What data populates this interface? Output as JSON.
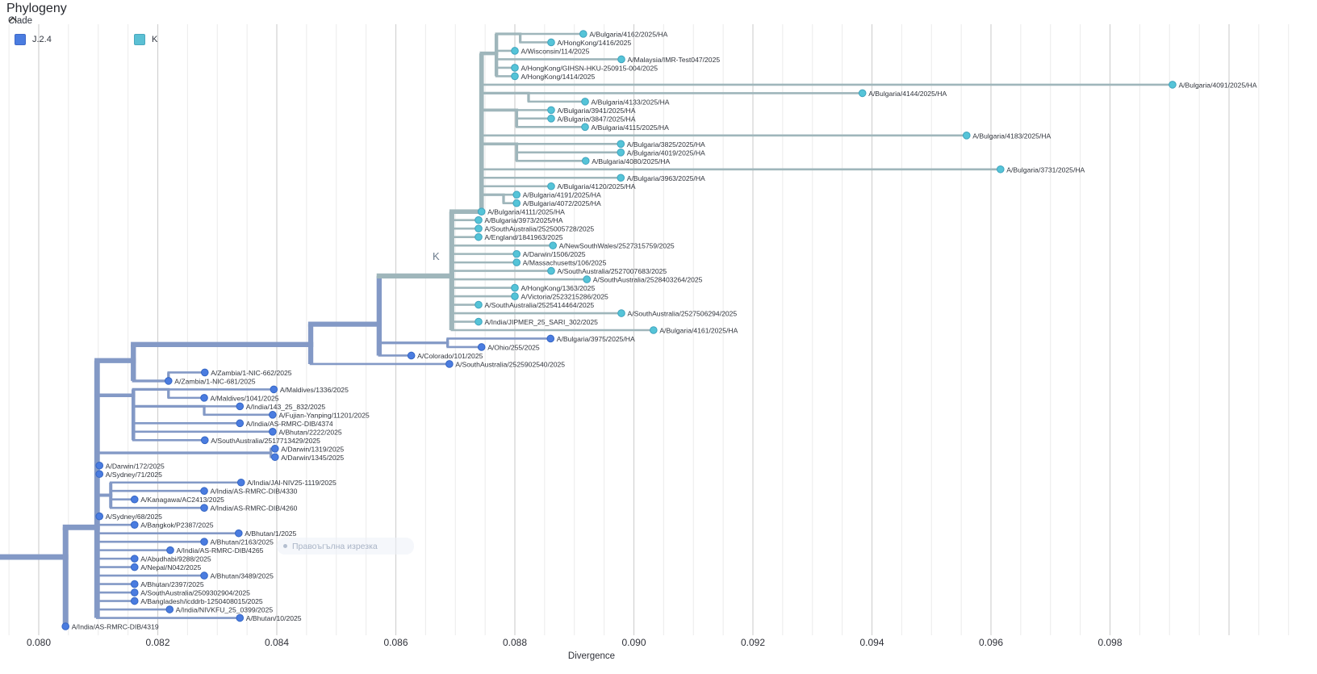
{
  "header": {
    "title": "Phylogeny",
    "filter_label": "Clade"
  },
  "legend": {
    "items": [
      {
        "label": "J.2.4",
        "color": "#4A7CE0",
        "border": "#3E68C8"
      },
      {
        "label": "K",
        "color": "#5BC0D4",
        "border": "#49A8BE"
      }
    ]
  },
  "clade_annotation": {
    "text": "K"
  },
  "watermark": {
    "text": "Правоъгълна изрезка"
  },
  "axis": {
    "label": "Divergence",
    "ticks": [
      {
        "label": "0.080",
        "value": 0.08
      },
      {
        "label": "0.082",
        "value": 0.082
      },
      {
        "label": "0.084",
        "value": 0.084
      },
      {
        "label": "0.086",
        "value": 0.086
      },
      {
        "label": "0.088",
        "value": 0.088
      },
      {
        "label": "0.090",
        "value": 0.09
      },
      {
        "label": "0.092",
        "value": 0.092
      },
      {
        "label": "0.094",
        "value": 0.094
      },
      {
        "label": "0.096",
        "value": 0.096
      },
      {
        "label": "0.098",
        "value": 0.098
      }
    ],
    "grid": {
      "start": 0.0795,
      "end": 0.1015,
      "minor_step": 0.0005,
      "major_multiple": 0.002
    }
  },
  "chart_data": {
    "type": "tree",
    "title": "Phylogeny",
    "xlabel": "Divergence",
    "xlim": [
      0.0795,
      0.1015
    ],
    "legend_position": "top-left",
    "grid": true,
    "clade_colors": {
      "J24": {
        "branch": "#8399C6",
        "fill": "#4A7CE0",
        "stroke": "#3566C4"
      },
      "K": {
        "branch": "#9FB6BB",
        "fill": "#55C4D8",
        "stroke": "#3FA3BD"
      }
    },
    "tree": {
      "x": 0.08045,
      "r": 62.8,
      "c": "J24",
      "ch": [
        {
          "x": 0.08098,
          "r": 59.3,
          "ch": [
            {
              "x": 0.08159,
              "r": 39.6,
              "ch": [
                {
                  "x": 0.08457,
                  "r": 37.7,
                  "ch": [
                    {
                      "x": 0.08572,
                      "r": 35.3,
                      "ch": [
                        {
                          "x": 0.08694,
                          "r": 29.6,
                          "c": "K",
                          "ch": [
                            {
                              "x": 0.08744,
                              "r": 22,
                              "ch": [
                                {
                                  "x": 0.08769,
                                  "r": 3.3,
                                  "ch": [
                                    {
                                      "x": 0.08809,
                                      "r": 1,
                                      "ch": [
                                        {
                                          "l": "A/Bulgaria/4162/2025/HA",
                                          "x": 0.08915,
                                          "r": 1
                                        },
                                        {
                                          "l": "A/HongKong/1416/2025",
                                          "x": 0.08861,
                                          "r": 2
                                        }
                                      ]
                                    },
                                    {
                                      "l": "A/Wisconsin/114/2025",
                                      "x": 0.088,
                                      "r": 3
                                    },
                                    {
                                      "l": "A/Malaysia/IMR-Test047/2025",
                                      "x": 0.08979,
                                      "r": 4
                                    },
                                    {
                                      "l": "A/HongKong/GIHSN-HKU-250915-004/2025",
                                      "x": 0.088,
                                      "r": 5
                                    },
                                    {
                                      "l": "A/HongKong/1414/2025",
                                      "x": 0.088,
                                      "r": 6
                                    }
                                  ]
                                },
                                {
                                  "l": "A/Bulgaria/4091/2025/HA",
                                  "x": 0.09905,
                                  "r": 7
                                },
                                {
                                  "x": 0.08823,
                                  "r": 8,
                                  "ch": [
                                    {
                                      "l": "A/Bulgaria/4144/2025/HA",
                                      "x": 0.09384,
                                      "r": 8
                                    },
                                    {
                                      "l": "A/Bulgaria/4133/2025/HA",
                                      "x": 0.08918,
                                      "r": 9
                                    }
                                  ]
                                },
                                {
                                  "x": 0.08803,
                                  "r": 10,
                                  "ch": [
                                    {
                                      "l": "A/Bulgaria/3941/2025/HA",
                                      "x": 0.08861,
                                      "r": 10
                                    },
                                    {
                                      "l": "A/Bulgaria/3847/2025/HA",
                                      "x": 0.08861,
                                      "r": 11
                                    },
                                    {
                                      "l": "A/Bulgaria/4115/2025/HA",
                                      "x": 0.08918,
                                      "r": 12
                                    }
                                  ]
                                },
                                {
                                  "l": "A/Bulgaria/4183/2025/HA",
                                  "x": 0.09559,
                                  "r": 13
                                },
                                {
                                  "x": 0.08803,
                                  "r": 14,
                                  "ch": [
                                    {
                                      "l": "A/Bulgaria/3825/2025/HA",
                                      "x": 0.08978,
                                      "r": 14
                                    },
                                    {
                                      "l": "A/Bulgaria/4019/2025/HA",
                                      "x": 0.08978,
                                      "r": 15
                                    },
                                    {
                                      "l": "A/Bulgaria/4080/2025/HA",
                                      "x": 0.08919,
                                      "r": 16
                                    }
                                  ]
                                },
                                {
                                  "l": "A/Bulgaria/3731/2025/HA",
                                  "x": 0.09616,
                                  "r": 17
                                },
                                {
                                  "l": "A/Bulgaria/3963/2025/HA",
                                  "x": 0.08978,
                                  "r": 18
                                },
                                {
                                  "l": "A/Bulgaria/4120/2025/HA",
                                  "x": 0.08861,
                                  "r": 19
                                },
                                {
                                  "x": 0.08781,
                                  "r": 20,
                                  "ch": [
                                    {
                                      "l": "A/Bulgaria/4191/2025/HA",
                                      "x": 0.08803,
                                      "r": 20
                                    },
                                    {
                                      "l": "A/Bulgaria/4072/2025/HA",
                                      "x": 0.08803,
                                      "r": 21
                                    }
                                  ]
                                },
                                {
                                  "l": "A/Bulgaria/4111/2025/HA",
                                  "x": 0.08744,
                                  "r": 22
                                }
                              ]
                            },
                            {
                              "l": "A/Bulgaria/3973/2025/HA",
                              "x": 0.08739,
                              "r": 23
                            },
                            {
                              "l": "A/SouthAustralia/2525005728/2025",
                              "x": 0.08739,
                              "r": 24
                            },
                            {
                              "l": "A/England/1841963/2025",
                              "x": 0.08739,
                              "r": 25
                            },
                            {
                              "l": "A/NewSouthWales/2527315759/2025",
                              "x": 0.08864,
                              "r": 26
                            },
                            {
                              "l": "A/Darwin/1506/2025",
                              "x": 0.08803,
                              "r": 27
                            },
                            {
                              "l": "A/Massachusetts/106/2025",
                              "x": 0.08803,
                              "r": 28
                            },
                            {
                              "l": "A/SouthAustralia/2527007683/2025",
                              "x": 0.08861,
                              "r": 29
                            },
                            {
                              "l": "A/SouthAustralia/2528403264/2025",
                              "x": 0.08921,
                              "r": 30
                            },
                            {
                              "l": "A/HongKong/1363/2025",
                              "x": 0.088,
                              "r": 31
                            },
                            {
                              "l": "A/Victoria/2523215286/2025",
                              "x": 0.088,
                              "r": 32
                            },
                            {
                              "l": "A/SouthAustralia/2525414464/2025",
                              "x": 0.08739,
                              "r": 33
                            },
                            {
                              "l": "A/SouthAustralia/2527506294/2025",
                              "x": 0.08979,
                              "r": 34
                            },
                            {
                              "l": "A/India/JIPMER_25_SARI_302/2025",
                              "x": 0.08739,
                              "r": 35
                            },
                            {
                              "l": "A/Bulgaria/4161/2025/HA",
                              "x": 0.09033,
                              "r": 36
                            }
                          ]
                        },
                        {
                          "x": 0.08687,
                          "r": 37.5,
                          "ch": [
                            {
                              "l": "A/Bulgaria/3975/2025/HA",
                              "x": 0.0886,
                              "r": 37
                            },
                            {
                              "l": "A/Ohio/255/2025",
                              "x": 0.08744,
                              "r": 38
                            }
                          ]
                        },
                        {
                          "l": "A/Colorado/101/2025",
                          "x": 0.08626,
                          "r": 39
                        }
                      ]
                    },
                    {
                      "l": "A/SouthAustralia/2525902540/2025",
                      "x": 0.0869,
                      "r": 40
                    }
                  ]
                },
                {
                  "x": 0.08218,
                  "r": 42,
                  "ch": [
                    {
                      "l": "A/Zambia/1-NIC-662/2025",
                      "x": 0.08279,
                      "r": 41
                    },
                    {
                      "l": "A/Zambia/1-NIC-681/2025",
                      "x": 0.08218,
                      "r": 42
                    }
                  ]
                }
              ]
            },
            {
              "x": 0.08159,
              "r": 43.7,
              "ch": [
                {
                  "x": 0.08218,
                  "r": 43,
                  "ch": [
                    {
                      "l": "A/Maldives/1336/2025",
                      "x": 0.08395,
                      "r": 43
                    },
                    {
                      "l": "A/Maldives/1041/2025",
                      "x": 0.08278,
                      "r": 44
                    }
                  ]
                },
                {
                  "x": 0.08278,
                  "r": 45,
                  "ch": [
                    {
                      "l": "A/India/143_25_832/2025",
                      "x": 0.08338,
                      "r": 45
                    },
                    {
                      "l": "A/Fujian-Yanping/11201/2025",
                      "x": 0.08393,
                      "r": 46
                    }
                  ]
                },
                {
                  "l": "A/India/AS-RMRC-DIB/4374",
                  "x": 0.08338,
                  "r": 47
                },
                {
                  "l": "A/Bhutan/2222/2025",
                  "x": 0.08393,
                  "r": 48
                },
                {
                  "l": "A/SouthAustralia/2517713429/2025",
                  "x": 0.08279,
                  "r": 49
                }
              ]
            },
            {
              "x": 0.0839,
              "r": 50.5,
              "ch": [
                {
                  "l": "A/Darwin/1319/2025",
                  "x": 0.08397,
                  "r": 50
                },
                {
                  "l": "A/Darwin/1345/2025",
                  "x": 0.08397,
                  "r": 51
                }
              ]
            },
            {
              "l": "A/Darwin/172/2025",
              "x": 0.08102,
              "r": 52
            },
            {
              "l": "A/Sydney/71/2025",
              "x": 0.08102,
              "r": 53
            },
            {
              "x": 0.08121,
              "r": 55.5,
              "ch": [
                {
                  "l": "A/India/JAI-NIV25-1119/2025",
                  "x": 0.0834,
                  "r": 54
                },
                {
                  "l": "A/India/AS-RMRC-DIB/4330",
                  "x": 0.08278,
                  "r": 55
                },
                {
                  "l": "A/Kanagawa/AC2413/2025",
                  "x": 0.08161,
                  "r": 56
                },
                {
                  "l": "A/India/AS-RMRC-DIB/4260",
                  "x": 0.08278,
                  "r": 57
                }
              ]
            },
            {
              "l": "A/Sydney/68/2025",
              "x": 0.08102,
              "r": 58
            },
            {
              "l": "A/Bangkok/P2387/2025",
              "x": 0.08161,
              "r": 59
            },
            {
              "l": "A/Bhutan/1/2025",
              "x": 0.08336,
              "r": 60
            },
            {
              "l": "A/Bhutan/2163/2025",
              "x": 0.08278,
              "r": 61
            },
            {
              "l": "A/India/AS-RMRC-DIB/4265",
              "x": 0.08221,
              "r": 62
            },
            {
              "l": "A/Abudhabi/9288/2025",
              "x": 0.08161,
              "r": 63
            },
            {
              "l": "A/Nepal/N042/2025",
              "x": 0.08161,
              "r": 64
            },
            {
              "l": "A/Bhutan/3489/2025",
              "x": 0.08278,
              "r": 65
            },
            {
              "l": "A/Bhutan/2397/2025",
              "x": 0.08161,
              "r": 66
            },
            {
              "l": "A/SouthAustralia/2509302904/2025",
              "x": 0.08161,
              "r": 67
            },
            {
              "l": "A/Bangladesh/icddrb-1250408015/2025",
              "x": 0.08161,
              "r": 68
            },
            {
              "l": "A/India/NIVKFU_25_0399/2025",
              "x": 0.0822,
              "r": 69
            },
            {
              "l": "A/Bhutan/10/2025",
              "x": 0.08338,
              "r": 70
            }
          ]
        },
        {
          "l": "A/India/AS-RMRC-DIB/4319",
          "x": 0.08045,
          "r": 71
        }
      ]
    }
  }
}
